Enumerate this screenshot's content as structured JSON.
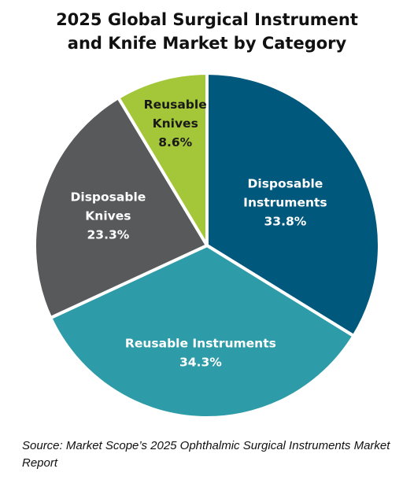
{
  "chart_data": {
    "type": "pie",
    "title": [
      "2025 Global Surgical Instrument",
      "and Knife Market by Category"
    ],
    "slices": [
      {
        "label": [
          "Disposable",
          "Instruments"
        ],
        "value": 33.8,
        "value_label": "33.8%",
        "color": "#00587C"
      },
      {
        "label": [
          "Reusable Instruments"
        ],
        "value": 34.3,
        "value_label": "34.3%",
        "color": "#2E9BA8"
      },
      {
        "label": [
          "Disposable",
          "Knives"
        ],
        "value": 23.3,
        "value_label": "23.3%",
        "color": "#58595B"
      },
      {
        "label": [
          "Reusable",
          "Knives"
        ],
        "value": 8.6,
        "value_label": "8.6%",
        "color": "#A4C639"
      }
    ],
    "start_angle_deg": 0,
    "direction": "clockwise",
    "border_color": "#ffffff"
  },
  "source_note": "Source: Market Scope’s 2025 Ophthalmic Surgical Instruments Market Report"
}
